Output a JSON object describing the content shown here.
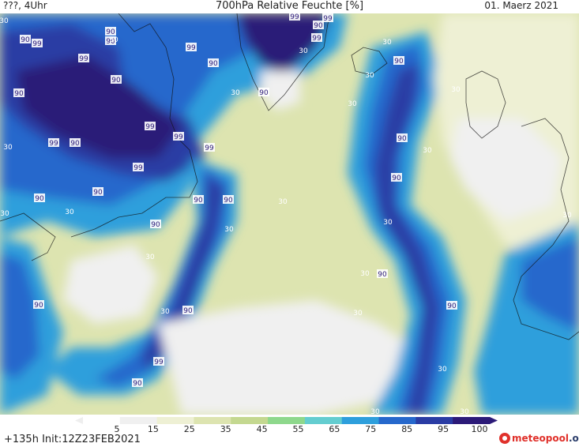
{
  "header": {
    "left": "???, 4Uhr",
    "title": "700hPa Relative Feuchte [%]",
    "right": "01. Maerz 2021"
  },
  "footer": {
    "run_info": "+135h Init:12Z23FEB2021",
    "logo_text": "meteopool",
    "logo_suffix": ".org"
  },
  "legend": {
    "ticks": [
      "5",
      "15",
      "25",
      "35",
      "45",
      "55",
      "65",
      "75",
      "85",
      "95",
      "100"
    ],
    "colors": [
      "#ffffff",
      "#f0f0f0",
      "#eef0d4",
      "#dde4b0",
      "#c4d890",
      "#8ed88c",
      "#64cdd0",
      "#2e9fdc",
      "#2668cc",
      "#2a3ca4",
      "#2c1a78"
    ]
  },
  "map_labels": [
    {
      "text": "90",
      "cls": "dark"
    },
    {
      "text": "99",
      "cls": "dark"
    },
    {
      "text": "90",
      "cls": "dark"
    },
    {
      "text": "90",
      "cls": "dark"
    },
    {
      "text": "99",
      "cls": "dark"
    },
    {
      "text": "90",
      "cls": "dark"
    },
    {
      "text": "99",
      "cls": "dark"
    },
    {
      "text": "90",
      "cls": "dark"
    },
    {
      "text": "99",
      "cls": "dark"
    },
    {
      "text": "90",
      "cls": "dark"
    },
    {
      "text": "99",
      "cls": "dark"
    },
    {
      "text": "99",
      "cls": "dark"
    },
    {
      "text": "99",
      "cls": "dark"
    },
    {
      "text": "99",
      "cls": "dark"
    },
    {
      "text": "90",
      "cls": "dark"
    },
    {
      "text": "90",
      "cls": "dark"
    },
    {
      "text": "99",
      "cls": "dark"
    },
    {
      "text": "30",
      "cls": "light"
    },
    {
      "text": "90",
      "cls": "dark"
    },
    {
      "text": "30",
      "cls": "light"
    },
    {
      "text": "90",
      "cls": "dark"
    },
    {
      "text": "30",
      "cls": "light"
    },
    {
      "text": "90",
      "cls": "dark"
    },
    {
      "text": "90",
      "cls": "dark"
    },
    {
      "text": "99",
      "cls": "dark"
    },
    {
      "text": "99",
      "cls": "dark"
    },
    {
      "text": "30",
      "cls": "light"
    },
    {
      "text": "30",
      "cls": "light"
    },
    {
      "text": "30",
      "cls": "light"
    },
    {
      "text": "30",
      "cls": "light"
    },
    {
      "text": "30",
      "cls": "light"
    },
    {
      "text": "30",
      "cls": "light"
    },
    {
      "text": "90",
      "cls": "dark"
    },
    {
      "text": "30",
      "cls": "light"
    },
    {
      "text": "30",
      "cls": "light"
    },
    {
      "text": "90",
      "cls": "dark"
    },
    {
      "text": "90",
      "cls": "dark"
    },
    {
      "text": "30",
      "cls": "light"
    },
    {
      "text": "30",
      "cls": "light"
    },
    {
      "text": "90",
      "cls": "dark"
    },
    {
      "text": "30",
      "cls": "light"
    },
    {
      "text": "90",
      "cls": "dark"
    },
    {
      "text": "30",
      "cls": "light"
    },
    {
      "text": "90",
      "cls": "dark"
    },
    {
      "text": "30",
      "cls": "light"
    },
    {
      "text": "90",
      "cls": "dark"
    },
    {
      "text": "99",
      "cls": "dark"
    },
    {
      "text": "90",
      "cls": "dark"
    },
    {
      "text": "30",
      "cls": "light"
    },
    {
      "text": "30",
      "cls": "light"
    },
    {
      "text": "30",
      "cls": "light"
    },
    {
      "text": "90",
      "cls": "dark"
    },
    {
      "text": "90",
      "cls": "dark"
    },
    {
      "text": "30",
      "cls": "light"
    },
    {
      "text": "30",
      "cls": "light"
    },
    {
      "text": "30",
      "cls": "light"
    },
    {
      "text": "30",
      "cls": "light"
    }
  ]
}
